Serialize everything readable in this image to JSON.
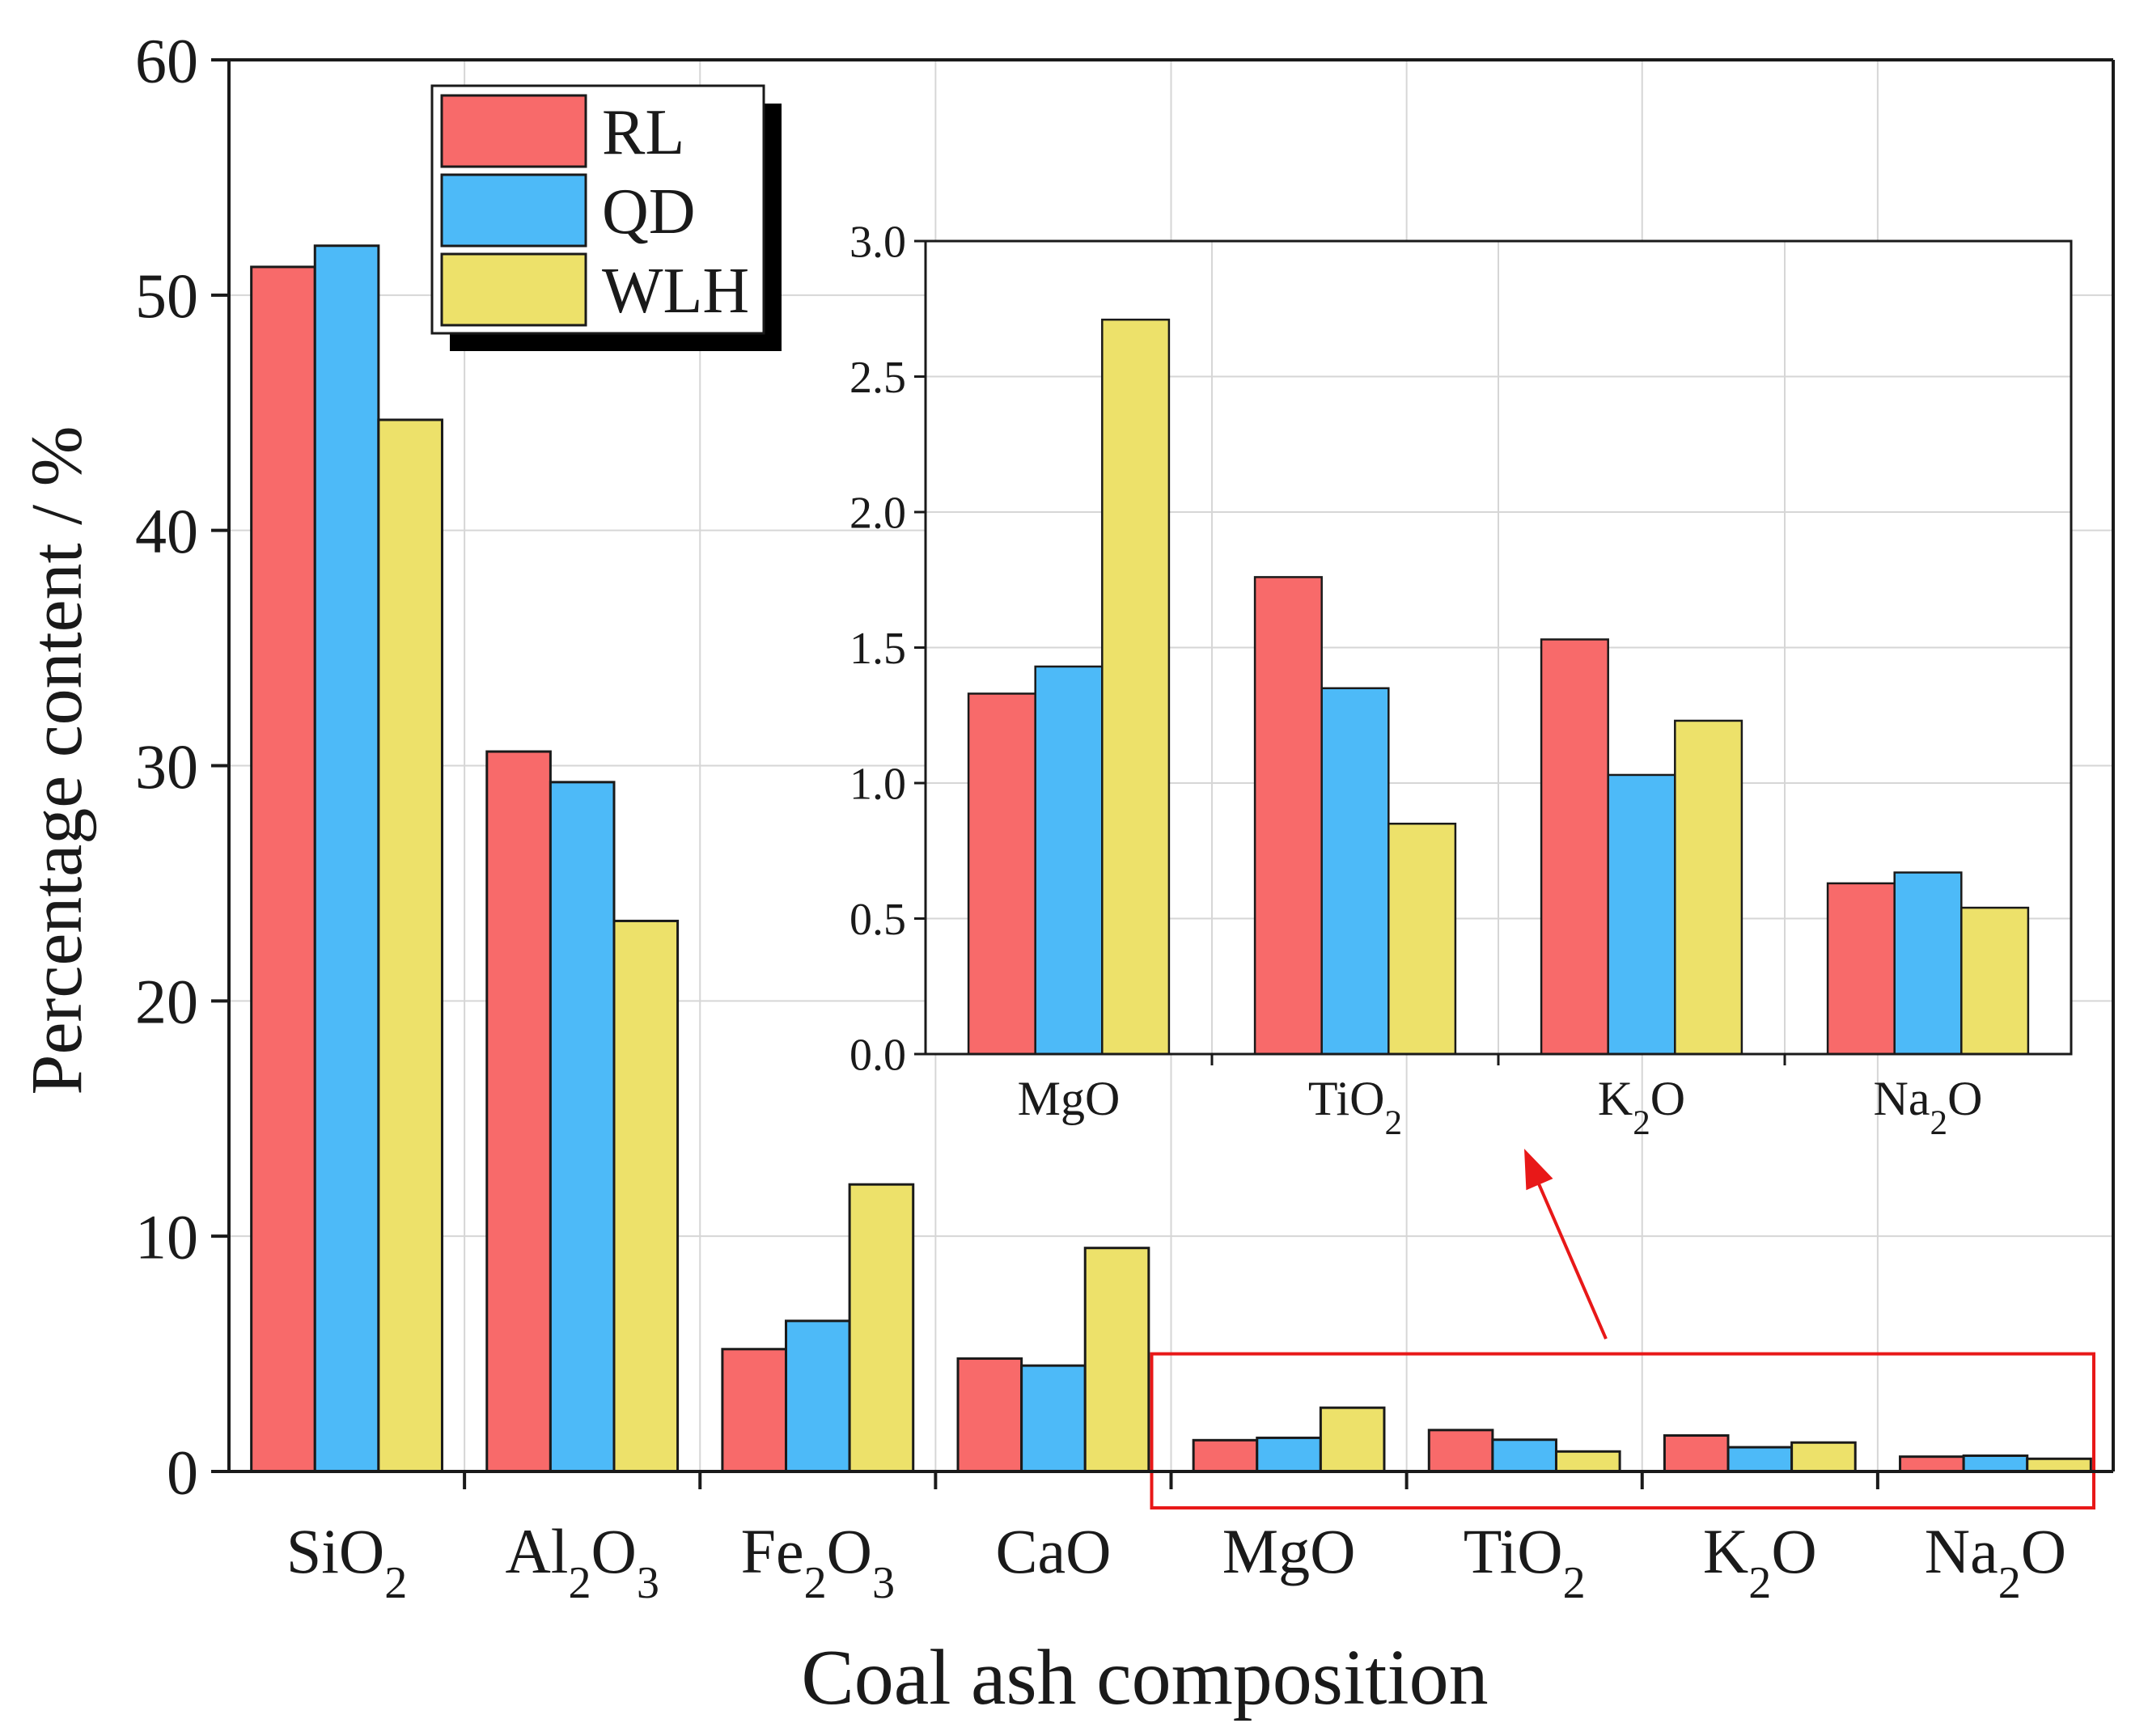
{
  "chart_data": [
    {
      "id": "main",
      "type": "bar",
      "title": "",
      "xlabel": "Coal ash composition",
      "ylabel": "Percentage content / %",
      "ylim": [
        0,
        60
      ],
      "yticks": [
        "0",
        "10",
        "20",
        "30",
        "40",
        "50",
        "60"
      ],
      "grid": true,
      "categories": [
        {
          "base": "SiO",
          "sub1": "2",
          "mid": "",
          "sub2": ""
        },
        {
          "base": "Al",
          "sub1": "2",
          "mid": "O",
          "sub2": "3"
        },
        {
          "base": "Fe",
          "sub1": "2",
          "mid": "O",
          "sub2": "3"
        },
        {
          "base": "CaO",
          "sub1": "",
          "mid": "",
          "sub2": ""
        },
        {
          "base": "MgO",
          "sub1": "",
          "mid": "",
          "sub2": ""
        },
        {
          "base": "TiO",
          "sub1": "2",
          "mid": "",
          "sub2": ""
        },
        {
          "base": "K",
          "sub1": "2",
          "mid": "O",
          "sub2": ""
        },
        {
          "base": "Na",
          "sub1": "2",
          "mid": "O",
          "sub2": ""
        }
      ],
      "series": [
        {
          "name": "RL",
          "color": "#f86a6a",
          "values": [
            51.2,
            30.6,
            5.2,
            4.8,
            1.33,
            1.76,
            1.53,
            0.63
          ]
        },
        {
          "name": "QD",
          "color": "#4dbaf8",
          "values": [
            52.1,
            29.3,
            6.4,
            4.5,
            1.43,
            1.35,
            1.03,
            0.67
          ]
        },
        {
          "name": "WLH",
          "color": "#ede16a",
          "values": [
            44.7,
            23.4,
            12.2,
            9.5,
            2.71,
            0.85,
            1.23,
            0.54
          ]
        }
      ],
      "legend": {
        "position": "top-left",
        "entries": [
          "RL",
          "QD",
          "WLH"
        ]
      },
      "highlight": {
        "categories_from": "MgO",
        "categories_to": "Na2O",
        "color": "#e81818",
        "arrow_to": "inset"
      }
    },
    {
      "id": "inset",
      "type": "bar",
      "title": "",
      "xlabel": "",
      "ylabel": "",
      "ylim": [
        0,
        3.0
      ],
      "yticks": [
        "0.0",
        "0.5",
        "1.0",
        "1.5",
        "2.0",
        "2.5",
        "3.0"
      ],
      "grid": true,
      "categories": [
        {
          "base": "MgO",
          "sub1": "",
          "mid": "",
          "sub2": ""
        },
        {
          "base": "TiO",
          "sub1": "2",
          "mid": "",
          "sub2": ""
        },
        {
          "base": "K",
          "sub1": "2",
          "mid": "O",
          "sub2": ""
        },
        {
          "base": "Na",
          "sub1": "2",
          "mid": "O",
          "sub2": ""
        }
      ],
      "series": [
        {
          "name": "RL",
          "color": "#f86a6a",
          "values": [
            1.33,
            1.76,
            1.53,
            0.63
          ]
        },
        {
          "name": "QD",
          "color": "#4dbaf8",
          "values": [
            1.43,
            1.35,
            1.03,
            0.67
          ]
        },
        {
          "name": "WLH",
          "color": "#ede16a",
          "values": [
            2.71,
            0.85,
            1.23,
            0.54
          ]
        }
      ]
    }
  ]
}
